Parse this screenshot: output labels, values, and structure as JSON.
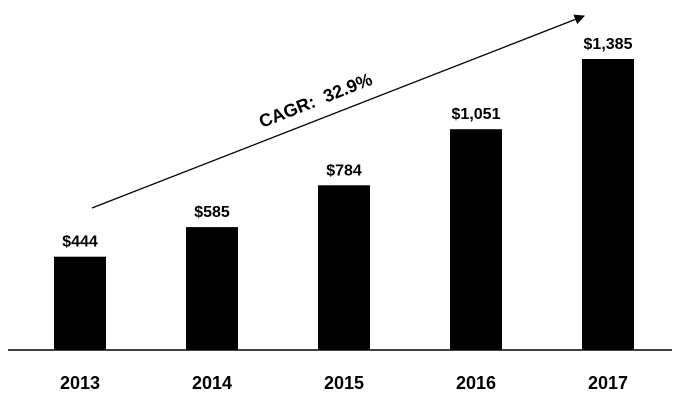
{
  "chart_data": {
    "type": "bar",
    "categories": [
      "2013",
      "2014",
      "2015",
      "2016",
      "2017"
    ],
    "values": [
      444,
      585,
      784,
      1051,
      1385
    ],
    "data_labels": [
      "$444",
      "$585",
      "$784",
      "$1,051",
      "$1,385"
    ],
    "title": "",
    "xlabel": "",
    "ylabel": "",
    "ylim": [
      0,
      1385
    ],
    "grid": false,
    "legend": "none",
    "annotation": {
      "text": "CAGR:  32.9%"
    },
    "colors": {
      "bar": "#000000",
      "axis": "#000000",
      "text": "#000000",
      "background": "#ffffff"
    }
  }
}
